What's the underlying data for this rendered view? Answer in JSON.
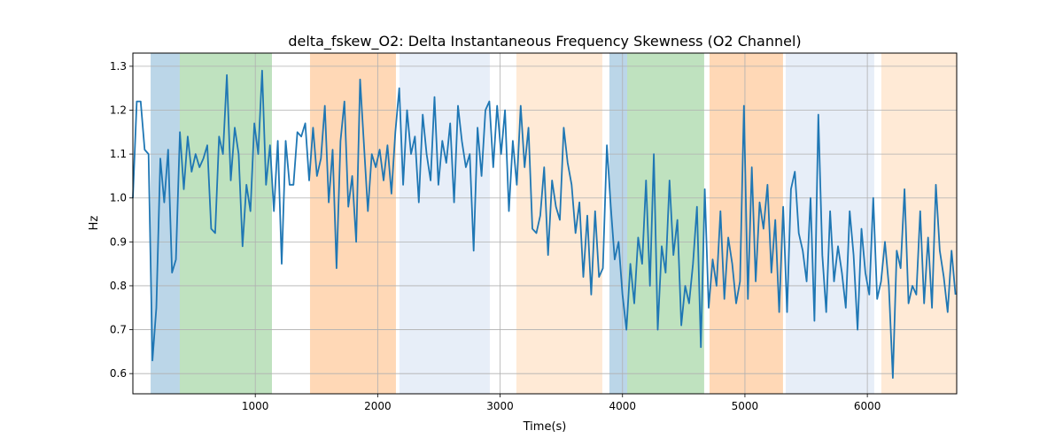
{
  "chart_data": {
    "type": "line",
    "title": "delta_fskew_O2: Delta Instantaneous Frequency Skewness (O2 Channel)",
    "xlabel": "Time(s)",
    "ylabel": "Hz",
    "xlim": [
      0,
      6730
    ],
    "ylim": [
      0.554,
      1.33
    ],
    "xticks": [
      1000,
      2000,
      3000,
      4000,
      5000,
      6000
    ],
    "yticks": [
      0.6,
      0.7,
      0.8,
      0.9,
      1.0,
      1.1,
      1.2,
      1.3
    ],
    "ytick_labels": [
      "0.6",
      "0.7",
      "0.8",
      "0.9",
      "1.0",
      "1.1",
      "1.2",
      "1.3"
    ],
    "grid": true,
    "line_color": "#1f77b4",
    "x_range": [
      0,
      6720
    ],
    "values": [
      1.0,
      1.22,
      1.22,
      1.11,
      1.1,
      0.63,
      0.75,
      1.09,
      0.99,
      1.11,
      0.83,
      0.86,
      1.15,
      1.02,
      1.14,
      1.06,
      1.1,
      1.07,
      1.09,
      1.12,
      0.93,
      0.92,
      1.14,
      1.1,
      1.28,
      1.04,
      1.16,
      1.1,
      0.89,
      1.03,
      0.97,
      1.17,
      1.1,
      1.29,
      1.03,
      1.12,
      0.97,
      1.13,
      0.85,
      1.13,
      1.03,
      1.03,
      1.15,
      1.14,
      1.17,
      1.04,
      1.16,
      1.05,
      1.09,
      1.21,
      0.99,
      1.11,
      0.84,
      1.13,
      1.22,
      0.98,
      1.05,
      0.9,
      1.27,
      1.12,
      0.97,
      1.1,
      1.07,
      1.11,
      1.04,
      1.12,
      1.01,
      1.15,
      1.25,
      1.03,
      1.2,
      1.1,
      1.14,
      0.99,
      1.19,
      1.1,
      1.04,
      1.23,
      1.03,
      1.13,
      1.08,
      1.17,
      0.99,
      1.21,
      1.13,
      1.07,
      1.1,
      0.88,
      1.16,
      1.05,
      1.2,
      1.22,
      1.07,
      1.21,
      1.1,
      1.2,
      0.97,
      1.13,
      1.03,
      1.21,
      1.07,
      1.16,
      0.93,
      0.92,
      0.96,
      1.07,
      0.87,
      1.04,
      0.98,
      0.95,
      1.16,
      1.08,
      1.03,
      0.92,
      0.99,
      0.82,
      0.96,
      0.78,
      0.97,
      0.82,
      0.84,
      1.12,
      0.98,
      0.86,
      0.9,
      0.78,
      0.7,
      0.85,
      0.76,
      0.91,
      0.85,
      1.04,
      0.8,
      1.1,
      0.7,
      0.89,
      0.83,
      1.04,
      0.87,
      0.95,
      0.71,
      0.8,
      0.76,
      0.85,
      0.98,
      0.66,
      1.02,
      0.75,
      0.86,
      0.8,
      0.97,
      0.77,
      0.91,
      0.85,
      0.76,
      0.81,
      1.21,
      0.77,
      1.07,
      0.81,
      0.99,
      0.93,
      1.03,
      0.83,
      0.95,
      0.74,
      0.98,
      0.74,
      1.02,
      1.06,
      0.92,
      0.88,
      0.81,
      1.0,
      0.72,
      1.19,
      0.87,
      0.74,
      0.97,
      0.81,
      0.89,
      0.83,
      0.75,
      0.97,
      0.87,
      0.7,
      0.93,
      0.83,
      0.78,
      1.0,
      0.77,
      0.81,
      0.9,
      0.8,
      0.59,
      0.88,
      0.84,
      1.02,
      0.76,
      0.8,
      0.78,
      0.97,
      0.76,
      0.91,
      0.75,
      1.03,
      0.88,
      0.82,
      0.74,
      0.88,
      0.78
    ],
    "spans": [
      {
        "start": 145,
        "end": 383,
        "color": "#1f77b4",
        "alpha": 0.3
      },
      {
        "start": 383,
        "end": 1136,
        "color": "#2ca02c",
        "alpha": 0.3
      },
      {
        "start": 1447,
        "end": 2149,
        "color": "#ff7f0e",
        "alpha": 0.3
      },
      {
        "start": 2178,
        "end": 2916,
        "color": "#aec7e8",
        "alpha": 0.3
      },
      {
        "start": 3133,
        "end": 3835,
        "color": "#ffbb78",
        "alpha": 0.3
      },
      {
        "start": 3893,
        "end": 4038,
        "color": "#1f77b4",
        "alpha": 0.3
      },
      {
        "start": 4038,
        "end": 4667,
        "color": "#2ca02c",
        "alpha": 0.3
      },
      {
        "start": 4711,
        "end": 5311,
        "color": "#ff7f0e",
        "alpha": 0.3
      },
      {
        "start": 5333,
        "end": 6056,
        "color": "#aec7e8",
        "alpha": 0.3
      },
      {
        "start": 6114,
        "end": 6730,
        "color": "#ffbb78",
        "alpha": 0.3
      }
    ]
  }
}
